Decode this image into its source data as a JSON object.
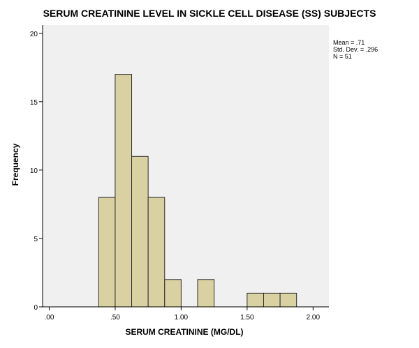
{
  "chart_data": {
    "type": "bar",
    "title": "SERUM CREATININE LEVEL IN SICKLE CELL DISEASE (SS) SUBJECTS",
    "xlabel": "SERUM CREATININE (MG/DL)",
    "ylabel": "Frequency",
    "xlim": [
      -0.05,
      2.12
    ],
    "ylim": [
      0,
      20.6
    ],
    "x_ticks": [
      {
        "value": 0.0,
        "label": ".00"
      },
      {
        "value": 0.5,
        "label": ".50"
      },
      {
        "value": 1.0,
        "label": "1.00"
      },
      {
        "value": 1.5,
        "label": "1.50"
      },
      {
        "value": 2.0,
        "label": "2.00"
      }
    ],
    "y_ticks": [
      {
        "value": 0,
        "label": "0"
      },
      {
        "value": 5,
        "label": "5"
      },
      {
        "value": 10,
        "label": "10"
      },
      {
        "value": 15,
        "label": "15"
      },
      {
        "value": 20,
        "label": "20"
      }
    ],
    "bins": [
      {
        "start": 0.375,
        "end": 0.5,
        "count": 8
      },
      {
        "start": 0.5,
        "end": 0.625,
        "count": 17
      },
      {
        "start": 0.625,
        "end": 0.75,
        "count": 11
      },
      {
        "start": 0.75,
        "end": 0.875,
        "count": 8
      },
      {
        "start": 0.875,
        "end": 1.0,
        "count": 2
      },
      {
        "start": 1.125,
        "end": 1.25,
        "count": 2
      },
      {
        "start": 1.5,
        "end": 1.625,
        "count": 1
      },
      {
        "start": 1.625,
        "end": 1.75,
        "count": 1
      },
      {
        "start": 1.75,
        "end": 1.875,
        "count": 1
      }
    ],
    "stats": {
      "mean": "Mean = .71",
      "std_dev": "Std. Dev. = .296",
      "n": "N = 51"
    },
    "grid": false,
    "colors": {
      "bar_fill": "#d9d1a1",
      "bar_stroke": "#2b2b2b",
      "plot_background": "#f0f0f0",
      "axis": "#000000"
    }
  }
}
